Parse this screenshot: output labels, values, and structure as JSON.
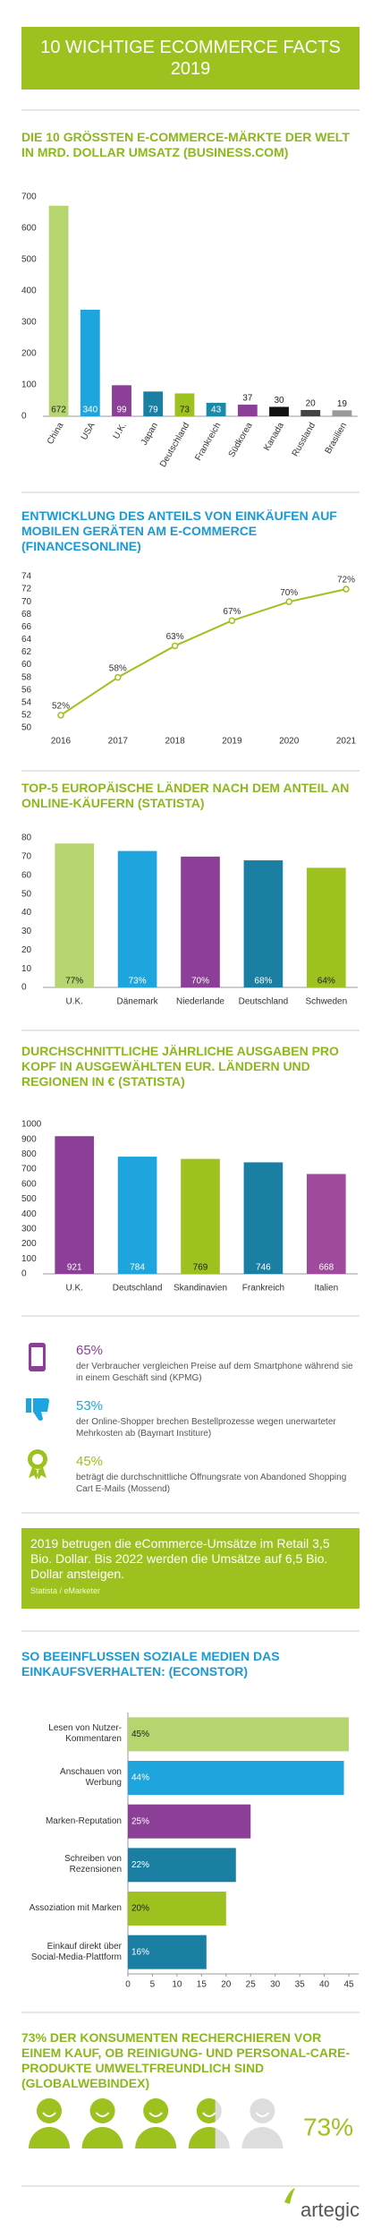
{
  "header": {
    "title": "10 WICHTIGE ECOMMERCE FACTS 2019"
  },
  "chart_data": [
    {
      "type": "bar",
      "title": "DIE 10 GRÖSSTEN E-COMMERCE-MÄRKTE DER WELT IN MRD. DOLLAR UMSATZ (BUSINESS.COM)",
      "categories": [
        "China",
        "USA",
        "U.K.",
        "Japan",
        "Deutschland",
        "Frankreich",
        "Südkorea",
        "Kanada",
        "Russland",
        "Brasilien"
      ],
      "values": [
        672,
        340,
        99,
        79,
        73,
        43,
        37,
        30,
        20,
        19
      ],
      "colors": [
        "#b6d56e",
        "#1ea5dd",
        "#8b3f97",
        "#1b7fa3",
        "#9dc21f",
        "#1b8aa8",
        "#8b3f97",
        "#111111",
        "#444444",
        "#999999"
      ],
      "ylim": [
        0,
        700
      ],
      "yticks": [
        0,
        100,
        200,
        300,
        400,
        500,
        600,
        700
      ],
      "grid": false
    },
    {
      "type": "line",
      "title": "ENTWICKLUNG DES ANTEILS VON EINKÄUFEN AUF MOBILEN GERÄTEN AM E-COMMERCE (FINANCESONLINE)",
      "categories": [
        "2016",
        "2017",
        "2018",
        "2019",
        "2020",
        "2021"
      ],
      "values": [
        52,
        58,
        63,
        67,
        70,
        72
      ],
      "value_labels": [
        "52%",
        "58%",
        "63%",
        "67%",
        "70%",
        "72%"
      ],
      "color": "#9dc21f",
      "ylim": [
        50,
        74
      ],
      "yticks": [
        50,
        52,
        54,
        56,
        58,
        60,
        62,
        64,
        66,
        68,
        70,
        72,
        74
      ],
      "grid": false
    },
    {
      "type": "bar",
      "title": "TOP-5 EUROPÄISCHE LÄNDER NACH DEM ANTEIL AN ONLINE-KÄUFERN (STATISTA)",
      "categories": [
        "U.K.",
        "Dänemark",
        "Niederlande",
        "Deutschland",
        "Schweden"
      ],
      "values": [
        77,
        73,
        70,
        68,
        64
      ],
      "value_labels": [
        "77%",
        "73%",
        "70%",
        "68%",
        "64%"
      ],
      "colors": [
        "#b6d56e",
        "#1ea5dd",
        "#8b3f97",
        "#1b7fa3",
        "#9dc21f"
      ],
      "ylim": [
        0,
        80
      ],
      "yticks": [
        0,
        10,
        20,
        30,
        40,
        50,
        60,
        70,
        80
      ],
      "grid": false
    },
    {
      "type": "bar",
      "title": "DURCHSCHNITTLICHE JÄHRLICHE AUSGABEN PRO KOPF IN AUSGEWÄHLTEN EUR. LÄNDERN UND REGIONEN IN € (STATISTA)",
      "categories": [
        "U.K.",
        "Deutschland",
        "Skandinavien",
        "Frankreich",
        "Italien"
      ],
      "values": [
        921,
        784,
        769,
        746,
        668
      ],
      "colors": [
        "#8b3f97",
        "#1ea5dd",
        "#9dc21f",
        "#1b7fa3",
        "#a04a9c"
      ],
      "ylim": [
        0,
        1000
      ],
      "yticks": [
        0,
        100,
        200,
        300,
        400,
        500,
        600,
        700,
        800,
        900,
        1000
      ],
      "grid": false
    },
    {
      "type": "hbar",
      "title": "SO BEEINFLUSSEN SOZIALE MEDIEN DAS EINKAUFSVERHALTEN: (ECONSTOR)",
      "categories": [
        "Lesen von Nutzer-Kommentaren",
        "Anschauen von Werbung",
        "Marken-Reputation",
        "Schreiben von Rezensionen",
        "Assoziation mit Marken",
        "Einkauf direkt über Social-Media-Plattform"
      ],
      "values": [
        45,
        44,
        25,
        22,
        20,
        16
      ],
      "value_labels": [
        "45%",
        "44%",
        "25%",
        "22%",
        "20%",
        "16%"
      ],
      "colors": [
        "#b6d56e",
        "#1ea5dd",
        "#8b3f97",
        "#1b7fa3",
        "#9dc21f",
        "#1b7fa3"
      ],
      "xlim": [
        0,
        47
      ],
      "xticks": [
        0,
        5,
        10,
        15,
        20,
        25,
        30,
        35,
        40,
        45
      ],
      "grid": false
    },
    {
      "type": "pictograph",
      "title": "73% DER KONSUMENTEN RECHERCHIEREN VOR EINEM KAUF, OB REINIGUNG- UND PERSONAL-CARE-PRODUKTE UMWELTFREUNDLICH SIND (GLOBALWEBINDEX)",
      "values": [
        73
      ],
      "value_labels": [
        "73%"
      ],
      "ylim": [
        0,
        100
      ],
      "icons": 5,
      "color": "#9dc21f"
    }
  ],
  "facts": [
    {
      "value_label": "65%",
      "text": "der Verbraucher vergleichen Preise auf dem Smartphone während sie in einem Geschäft sind (KPMG)"
    },
    {
      "value_label": "53%",
      "text": "der Online-Shopper brechen Bestellprozesse wegen unerwarteter Mehrkosten ab (Baymart Institure)"
    },
    {
      "value_label": "45%",
      "text": "beträgt die durchschnittliche Öffnungsrate von Abandoned Shopping Cart E-Mails (Mossend)"
    }
  ],
  "highlight": {
    "text": "2019 betrugen die eCommerce-Umsätze im Retail 3,5 Bio. Dollar. Bis 2022 werden die Umsätze auf 6,5 Bio. Dollar ansteigen.",
    "source": "Statista / eMarketer"
  },
  "footer": {
    "logo": "artegic"
  }
}
